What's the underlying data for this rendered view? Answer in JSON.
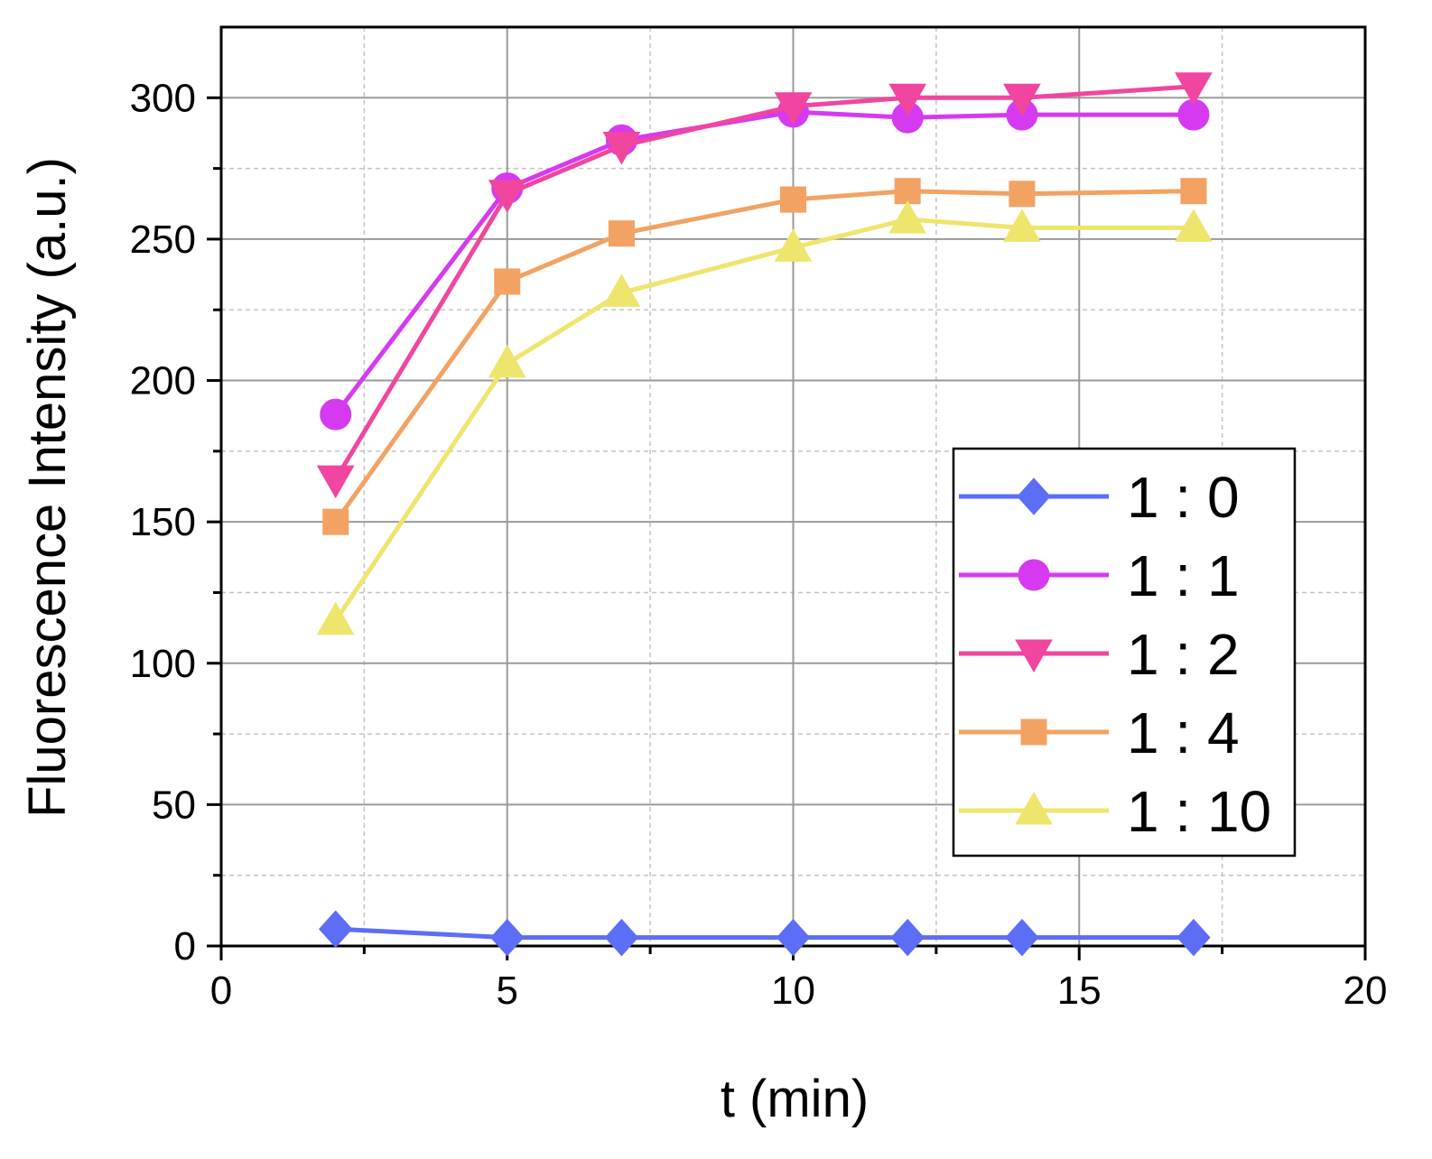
{
  "chart_data": {
    "type": "line",
    "title": "",
    "xlabel": "t (min)",
    "ylabel": "Fluorescence Intensity (a.u.)",
    "xlim": [
      0,
      20
    ],
    "ylim": [
      0,
      325
    ],
    "xticks": [
      0,
      5,
      10,
      15,
      20
    ],
    "yticks": [
      0,
      50,
      100,
      150,
      200,
      250,
      300
    ],
    "x_minor_ticks": [
      2.5,
      7.5,
      12.5,
      17.5
    ],
    "y_minor_ticks": [
      25,
      75,
      125,
      175,
      225,
      275
    ],
    "grid": true,
    "legend_position": "lower-right",
    "x": [
      2,
      5,
      7,
      10,
      12,
      14,
      17
    ],
    "series": [
      {
        "name": "1 : 0",
        "marker": "diamond",
        "color": "#5b6ef5",
        "values": [
          6,
          3,
          3,
          3,
          3,
          3,
          3
        ]
      },
      {
        "name": "1 : 1",
        "marker": "circle",
        "color": "#d63af0",
        "values": [
          188,
          268,
          285,
          295,
          293,
          294,
          294
        ]
      },
      {
        "name": "1 : 2",
        "marker": "triangle-down",
        "color": "#f0469f",
        "values": [
          165,
          266,
          283,
          297,
          300,
          300,
          304
        ]
      },
      {
        "name": "1 : 4",
        "marker": "square",
        "color": "#f2a262",
        "values": [
          150,
          235,
          252,
          264,
          267,
          266,
          267
        ]
      },
      {
        "name": "1 : 10",
        "marker": "triangle-up",
        "color": "#eee56c",
        "values": [
          115,
          206,
          231,
          247,
          257,
          254,
          254
        ]
      }
    ]
  }
}
